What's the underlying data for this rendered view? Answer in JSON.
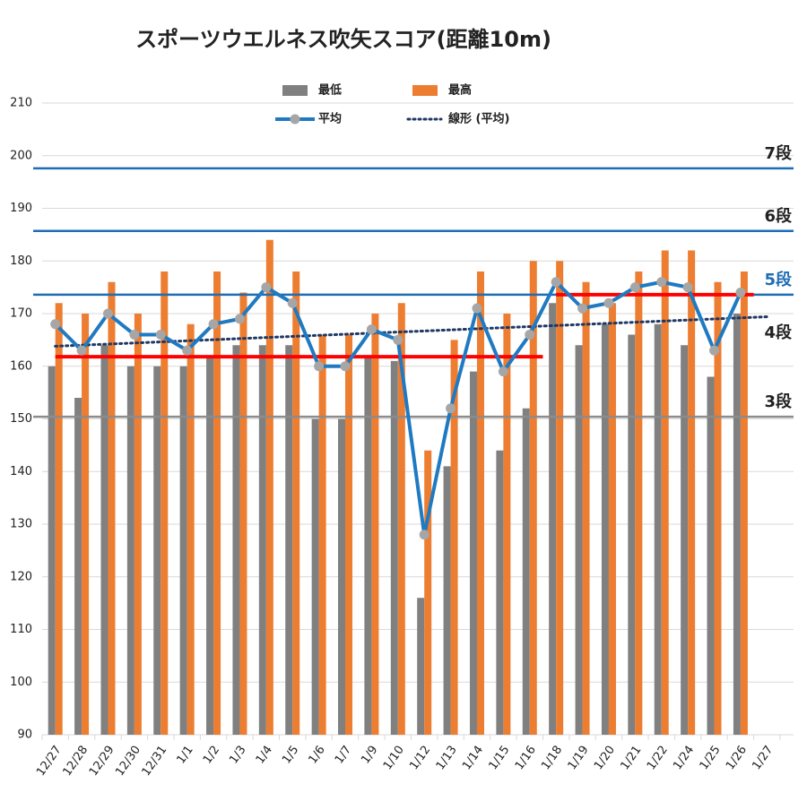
{
  "chart_data": {
    "type": "bar",
    "title": "スポーツウエルネス吹矢スコア(距離10m)",
    "categories": [
      "12/27",
      "12/28",
      "12/29",
      "12/30",
      "12/31",
      "1/1",
      "1/2",
      "1/3",
      "1/4",
      "1/5",
      "1/6",
      "1/7",
      "1/9",
      "1/10",
      "1/12",
      "1/13",
      "1/14",
      "1/15",
      "1/16",
      "1/18",
      "1/19",
      "1/20",
      "1/21",
      "1/22",
      "1/24",
      "1/25",
      "1/26",
      "1/27"
    ],
    "series": [
      {
        "name": "最低",
        "color": "#808080",
        "kind": "bar",
        "values": [
          160,
          154,
          164,
          160,
          160,
          160,
          162,
          164,
          164,
          164,
          150,
          150,
          162,
          161,
          116,
          141,
          159,
          144,
          152,
          172,
          164,
          168,
          166,
          168,
          164,
          158,
          170,
          null
        ]
      },
      {
        "name": "最高",
        "color": "#ed7d31",
        "kind": "bar",
        "values": [
          172,
          170,
          176,
          170,
          178,
          168,
          178,
          174,
          184,
          178,
          166,
          166,
          170,
          172,
          144,
          165,
          178,
          170,
          180,
          180,
          176,
          172,
          178,
          182,
          182,
          176,
          178,
          null
        ]
      },
      {
        "name": "平均",
        "color": "#1f7ac2",
        "kind": "line",
        "marker_color": "#a6a6a6",
        "values": [
          168,
          163,
          170,
          166,
          166,
          163,
          168,
          169,
          175,
          172,
          160,
          160,
          167,
          165,
          128,
          152,
          171,
          159,
          166,
          176,
          171,
          172,
          175,
          176,
          175,
          163,
          174,
          null
        ]
      }
    ],
    "trend": {
      "name": "線形 (平均)",
      "color": "#1f3864",
      "start": 163.8,
      "end": 169.4
    },
    "levels": [
      {
        "label": "7段",
        "value": 197.6,
        "color": "#1f6db5",
        "label_color": "#222",
        "line": true
      },
      {
        "label": "6段",
        "value": 185.7,
        "color": "#1f6db5",
        "label_color": "#222",
        "line": true
      },
      {
        "label": "5段",
        "value": 173.6,
        "color": "#1f6db5",
        "label_color": "#1f6db5",
        "line": true
      },
      {
        "label": "4段",
        "value": 163.5,
        "color": "#222",
        "label_color": "#222",
        "line": false
      },
      {
        "label": "3段",
        "value": 150.4,
        "color": "#8c8c8c",
        "label_color": "#222",
        "line": true
      }
    ],
    "red_segments": [
      {
        "from": "12/27",
        "to": "1/16",
        "value": 161.8,
        "color": "#ff0000"
      },
      {
        "from": "1/18",
        "to": "1/26",
        "value": 173.6,
        "color": "#ff0000"
      }
    ],
    "ylim": [
      90,
      210
    ],
    "yticks": [
      90,
      100,
      110,
      120,
      130,
      140,
      150,
      160,
      170,
      180,
      190,
      200,
      210
    ],
    "grid": true
  }
}
